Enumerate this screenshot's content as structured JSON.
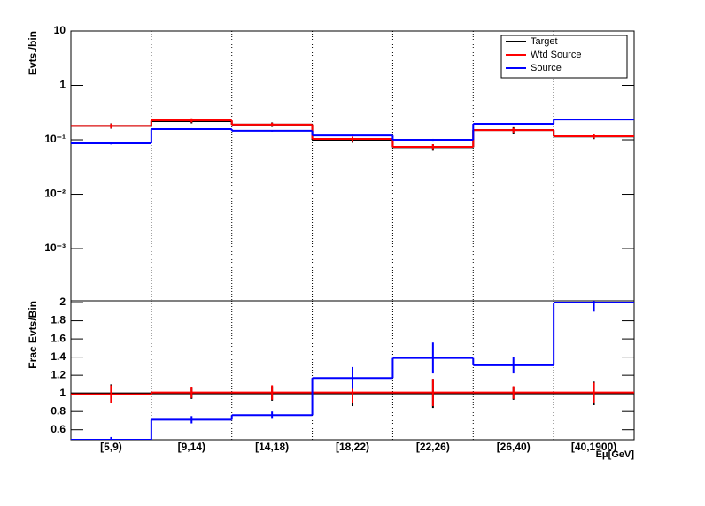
{
  "chart_data": [
    {
      "type": "step",
      "ylabel": "Evts./bin",
      "log": true,
      "ylim": [
        0.00011,
        10
      ],
      "yticks": [
        {
          "value": 0.001,
          "label": "10⁻³"
        },
        {
          "value": 0.01,
          "label": "10⁻²"
        },
        {
          "value": 0.1,
          "label": "10⁻¹"
        },
        1,
        10
      ],
      "legend": "top-right",
      "series": [
        {
          "name": "Target",
          "color": "#000000",
          "values": [
            0.18,
            0.22,
            0.19,
            0.1,
            0.073,
            0.15,
            0.115
          ],
          "errors": [
            0.02,
            0.02,
            0.018,
            0.012,
            0.01,
            0.02,
            0.012
          ]
        },
        {
          "name": "Wtd Source",
          "color": "#ff0000",
          "values": [
            0.18,
            0.228,
            0.19,
            0.104,
            0.074,
            0.15,
            0.116
          ],
          "errors": [
            0.018,
            0.02,
            0.015,
            0.01,
            0.009,
            0.015,
            0.01
          ]
        },
        {
          "name": "Source",
          "color": "#0000ff",
          "values": [
            0.086,
            0.157,
            0.146,
            0.12,
            0.1,
            0.196,
            0.236
          ],
          "errors": [
            0.004,
            0.006,
            0.005,
            0.004,
            0.004,
            0.006,
            0.007
          ]
        }
      ]
    },
    {
      "type": "step",
      "ylabel": "Frac Evts/Bin",
      "xlabel": "Eμ[GeV]",
      "ylim": [
        0.49,
        2.02
      ],
      "yticks": [
        0.6,
        0.8,
        1,
        1.2,
        1.4,
        1.6,
        1.8,
        2
      ],
      "categories": [
        "[5,9)",
        "[9,14)",
        "[14,18)",
        "[18,22)",
        "[22,26)",
        "[26,40)",
        "[40,1900)"
      ],
      "series": [
        {
          "color": "#000000",
          "values": [
            1,
            1,
            1,
            1,
            1,
            1,
            1
          ],
          "errors": [
            0.1,
            0.06,
            0.08,
            0.14,
            0.16,
            0.07,
            0.13
          ]
        },
        {
          "color": "#ff0000",
          "values": [
            0.99,
            1.01,
            1.01,
            1.01,
            1.01,
            1.01,
            1.01
          ],
          "errors": [
            0.1,
            0.06,
            0.08,
            0.12,
            0.15,
            0.07,
            0.11
          ]
        },
        {
          "color": "#0000ff",
          "values": [
            0.49,
            0.71,
            0.76,
            1.17,
            1.39,
            1.31,
            2.0
          ],
          "errors": [
            0.03,
            0.04,
            0.04,
            0.12,
            0.17,
            0.09,
            0.1
          ]
        }
      ]
    }
  ]
}
